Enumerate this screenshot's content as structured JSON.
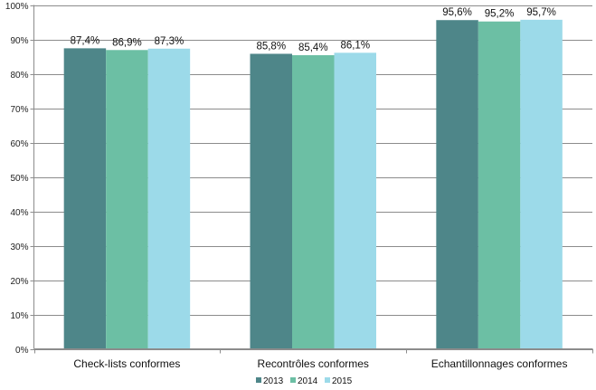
{
  "chart_data": {
    "type": "bar",
    "title": "",
    "xlabel": "",
    "ylabel": "",
    "categories": [
      "Check-lists conformes",
      "Recontrôles conformes",
      "Echantillonnages conformes"
    ],
    "series": [
      {
        "name": "2013",
        "color": "#4e8689",
        "values": [
          87.4,
          85.8,
          95.6
        ],
        "labels": [
          "87,4%",
          "85,8%",
          "95,6%"
        ]
      },
      {
        "name": "2014",
        "color": "#6cbfa4",
        "values": [
          86.9,
          85.4,
          95.2
        ],
        "labels": [
          "86,9%",
          "85,4%",
          "95,2%"
        ]
      },
      {
        "name": "2015",
        "color": "#9cdae9",
        "values": [
          87.3,
          86.1,
          95.7
        ],
        "labels": [
          "87,3%",
          "86,1%",
          "95,7%"
        ]
      }
    ],
    "ylim": [
      0,
      100
    ],
    "yticks": [
      0,
      10,
      20,
      30,
      40,
      50,
      60,
      70,
      80,
      90,
      100
    ],
    "ytick_labels": [
      "0%",
      "10%",
      "20%",
      "30%",
      "40%",
      "50%",
      "60%",
      "70%",
      "80%",
      "90%",
      "100%"
    ],
    "grid": true,
    "legend_position": "bottom-right"
  }
}
